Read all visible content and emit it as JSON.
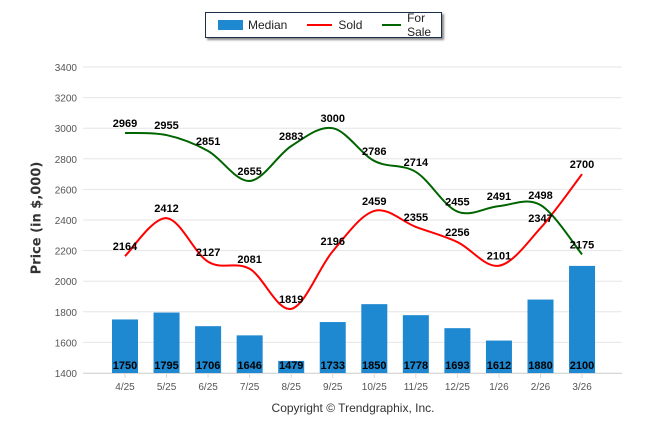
{
  "chart_data": {
    "type": "bar",
    "title": "",
    "xlabel": "",
    "ylabel": "Price (in $,000)",
    "ylim": [
      1400,
      3400
    ],
    "yticks": [
      1400,
      1600,
      1800,
      2000,
      2200,
      2400,
      2600,
      2800,
      3000,
      3200,
      3400
    ],
    "grid": true,
    "legend_position": "top-center",
    "categories": [
      "4/25",
      "5/25",
      "6/25",
      "7/25",
      "8/25",
      "9/25",
      "10/25",
      "11/25",
      "12/25",
      "1/26",
      "2/26",
      "3/26"
    ],
    "series": [
      {
        "name": "Median",
        "kind": "bar",
        "color": "#1e88d0",
        "values": [
          1750,
          1795,
          1706,
          1646,
          1479,
          1733,
          1850,
          1778,
          1693,
          1612,
          1880,
          2100
        ]
      },
      {
        "name": "Sold",
        "kind": "line",
        "color": "#ff0000",
        "values": [
          2164,
          2412,
          2127,
          2081,
          1819,
          2196,
          2459,
          2355,
          2256,
          2101,
          2347,
          2700
        ]
      },
      {
        "name": "For Sale",
        "kind": "line",
        "color": "#006400",
        "values": [
          2969,
          2955,
          2851,
          2655,
          2883,
          3000,
          2786,
          2714,
          2455,
          2491,
          2498,
          2175
        ]
      }
    ]
  },
  "legend": {
    "median": "Median",
    "sold": "Sold",
    "for_sale": "For Sale"
  },
  "footer": {
    "copyright": "Copyright © Trendgraphix, Inc."
  }
}
